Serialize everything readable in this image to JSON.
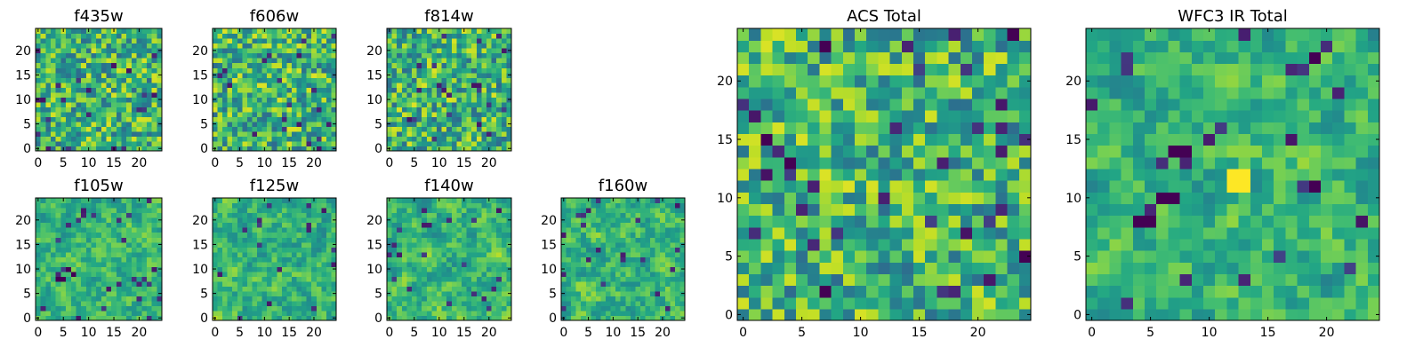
{
  "chart_data": [
    {
      "type": "heatmap",
      "title": "f435w",
      "grid_size": [
        25,
        25
      ],
      "xticks": [
        0,
        5,
        10,
        15,
        20
      ],
      "yticks": [
        0,
        5,
        10,
        15,
        20
      ],
      "xlim": [
        -0.5,
        24.5
      ],
      "ylim": [
        -0.5,
        24.5
      ],
      "colormap": "viridis",
      "noise_scale": 1
    },
    {
      "type": "heatmap",
      "title": "f606w",
      "grid_size": [
        25,
        25
      ],
      "xticks": [
        0,
        5,
        10,
        15,
        20
      ],
      "yticks": [
        0,
        5,
        10,
        15,
        20
      ],
      "xlim": [
        -0.5,
        24.5
      ],
      "ylim": [
        -0.5,
        24.5
      ],
      "colormap": "viridis",
      "noise_scale": 1
    },
    {
      "type": "heatmap",
      "title": "f814w",
      "grid_size": [
        25,
        25
      ],
      "xticks": [
        0,
        5,
        10,
        15,
        20
      ],
      "yticks": [
        0,
        5,
        10,
        15,
        20
      ],
      "xlim": [
        -0.5,
        24.5
      ],
      "ylim": [
        -0.5,
        24.5
      ],
      "colormap": "viridis",
      "noise_scale": 1
    },
    {
      "type": "heatmap",
      "title": "f105w",
      "grid_size": [
        25,
        25
      ],
      "xticks": [
        0,
        5,
        10,
        15,
        20
      ],
      "yticks": [
        0,
        5,
        10,
        15,
        20
      ],
      "xlim": [
        -0.5,
        24.5
      ],
      "ylim": [
        -0.5,
        24.5
      ],
      "colormap": "viridis",
      "noise_scale": 2,
      "dark_spots": [
        [
          4,
          8
        ],
        [
          5,
          8
        ],
        [
          6,
          10
        ],
        [
          7,
          9
        ]
      ]
    },
    {
      "type": "heatmap",
      "title": "f125w",
      "grid_size": [
        25,
        25
      ],
      "xticks": [
        0,
        5,
        10,
        15,
        20
      ],
      "yticks": [
        0,
        5,
        10,
        15,
        20
      ],
      "xlim": [
        -0.5,
        24.5
      ],
      "ylim": [
        -0.5,
        24.5
      ],
      "colormap": "viridis",
      "noise_scale": 2
    },
    {
      "type": "heatmap",
      "title": "f140w",
      "grid_size": [
        25,
        25
      ],
      "xticks": [
        0,
        5,
        10,
        15,
        20
      ],
      "yticks": [
        0,
        5,
        10,
        15,
        20
      ],
      "xlim": [
        -0.5,
        24.5
      ],
      "ylim": [
        -0.5,
        24.5
      ],
      "colormap": "viridis",
      "noise_scale": 2
    },
    {
      "type": "heatmap",
      "title": "f160w",
      "grid_size": [
        25,
        25
      ],
      "xticks": [
        0,
        5,
        10,
        15,
        20
      ],
      "yticks": [
        0,
        5,
        10,
        15,
        20
      ],
      "xlim": [
        -0.5,
        24.5
      ],
      "ylim": [
        -0.5,
        24.5
      ],
      "colormap": "viridis",
      "noise_scale": 2
    },
    {
      "type": "heatmap",
      "title": "ACS Total",
      "grid_size": [
        25,
        25
      ],
      "xticks": [
        0,
        5,
        10,
        15,
        20
      ],
      "yticks": [
        0,
        5,
        10,
        15,
        20
      ],
      "xlim": [
        -0.5,
        24.5
      ],
      "ylim": [
        -0.5,
        24.5
      ],
      "colormap": "viridis",
      "noise_scale": 1,
      "dark_spots": [
        [
          2,
          15
        ],
        [
          4,
          13
        ],
        [
          7,
          2
        ],
        [
          24,
          5
        ],
        [
          23,
          24
        ],
        [
          7,
          23
        ]
      ]
    },
    {
      "type": "heatmap",
      "title": "WFC3 IR Total",
      "grid_size": [
        25,
        25
      ],
      "xticks": [
        0,
        5,
        10,
        15,
        20
      ],
      "yticks": [
        0,
        5,
        10,
        15,
        20
      ],
      "xlim": [
        -0.5,
        24.5
      ],
      "ylim": [
        -0.5,
        24.5
      ],
      "colormap": "viridis",
      "noise_scale": 2,
      "dark_spots": [
        [
          7,
          14
        ],
        [
          8,
          14
        ],
        [
          4,
          8
        ],
        [
          5,
          8
        ],
        [
          6,
          10
        ],
        [
          7,
          10
        ],
        [
          19,
          22
        ],
        [
          19,
          11
        ]
      ],
      "bright_spots": [
        [
          12,
          12
        ],
        [
          13,
          12
        ],
        [
          12,
          11
        ],
        [
          13,
          11
        ]
      ]
    }
  ]
}
